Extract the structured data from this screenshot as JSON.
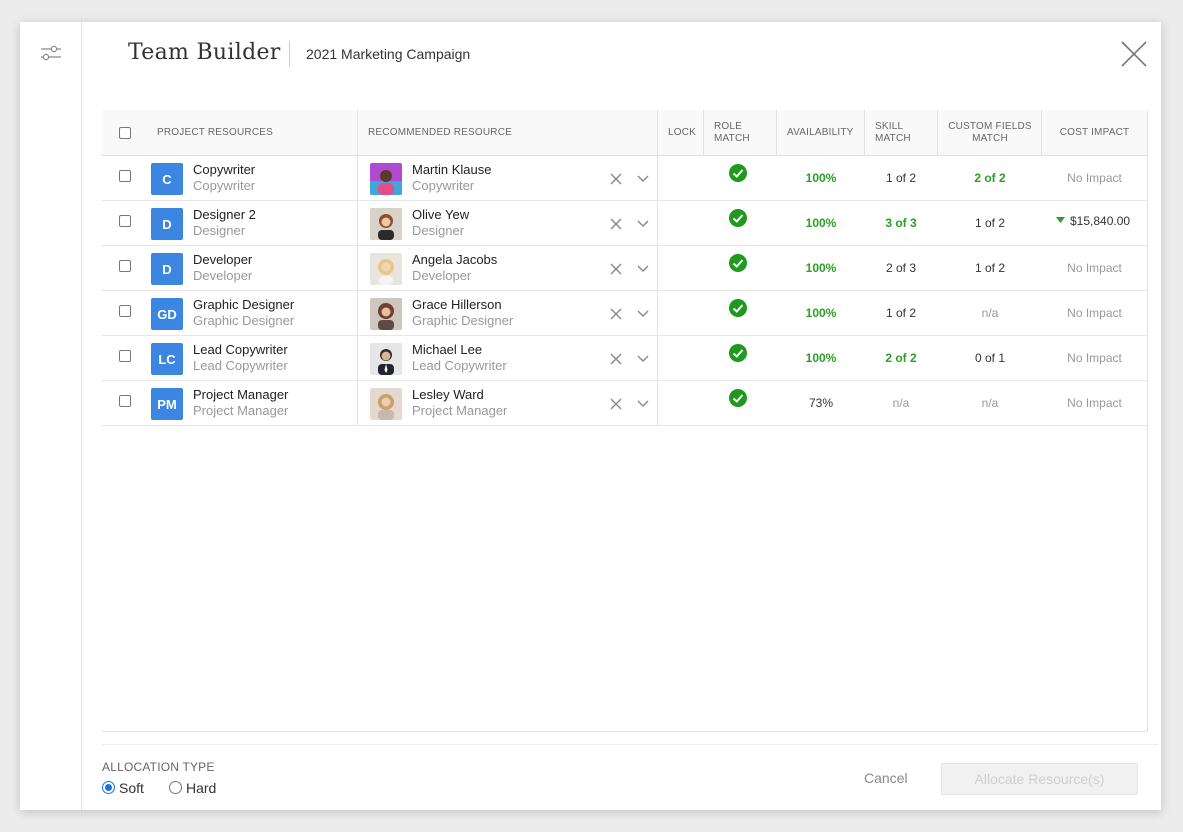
{
  "header": {
    "title": "Team Builder",
    "subtitle": "2021 Marketing Campaign"
  },
  "columns": {
    "project_resources": "PROJECT RESOURCES",
    "recommended_resource": "RECOMMENDED RESOURCE",
    "lock": "LOCK",
    "role_match_1": "ROLE",
    "role_match_2": "MATCH",
    "availability": "AVAILABILITY",
    "skill_match_1": "SKILL",
    "skill_match_2": "MATCH",
    "custom_fields_1": "CUSTOM FIELDS",
    "custom_fields_2": "MATCH",
    "cost_impact": "COST IMPACT"
  },
  "rows": [
    {
      "initials": "C",
      "role": "Copywriter",
      "role_sub": "Copywriter",
      "resource": "Martin Klause",
      "resource_sub": "Copywriter",
      "availability": "100%",
      "skill": "1 of 2",
      "custom": "2 of 2",
      "cost": "No Impact"
    },
    {
      "initials": "D",
      "role": "Designer 2",
      "role_sub": "Designer",
      "resource": "Olive Yew",
      "resource_sub": "Designer",
      "availability": "100%",
      "skill": "3 of 3",
      "custom": "1 of 2",
      "cost": "$15,840.00"
    },
    {
      "initials": "D",
      "role": "Developer",
      "role_sub": "Developer",
      "resource": "Angela Jacobs",
      "resource_sub": "Developer",
      "availability": "100%",
      "skill": "2 of 3",
      "custom": "1 of 2",
      "cost": "No Impact"
    },
    {
      "initials": "GD",
      "role": "Graphic Designer",
      "role_sub": "Graphic Designer",
      "resource": "Grace Hillerson",
      "resource_sub": "Graphic Designer",
      "availability": "100%",
      "skill": "1 of 2",
      "custom": "n/a",
      "cost": "No Impact"
    },
    {
      "initials": "LC",
      "role": "Lead Copywriter",
      "role_sub": "Lead Copywriter",
      "resource": "Michael Lee",
      "resource_sub": "Lead Copywriter",
      "availability": "100%",
      "skill": "2 of 2",
      "custom": "0 of 1",
      "cost": "No Impact"
    },
    {
      "initials": "PM",
      "role": "Project Manager",
      "role_sub": "Project Manager",
      "resource": "Lesley Ward",
      "resource_sub": "Project Manager",
      "availability": "73%",
      "skill": "n/a",
      "custom": "n/a",
      "cost": "No Impact"
    }
  ],
  "footer": {
    "allocation_type_label": "ALLOCATION TYPE",
    "soft_label": "Soft",
    "hard_label": "Hard",
    "selected": "Soft",
    "cancel_label": "Cancel",
    "allocate_label": "Allocate Resource(s)"
  },
  "colors": {
    "accent": "#3b86e0",
    "match_green": "#2aa024",
    "radio_blue": "#1a73e8"
  },
  "icons": {
    "filter": "filter-sliders-icon",
    "close": "close-icon",
    "check": "check-circle-icon",
    "remove": "remove-x-icon",
    "expand": "chevron-down-icon",
    "cost_down": "triangle-down-icon"
  }
}
